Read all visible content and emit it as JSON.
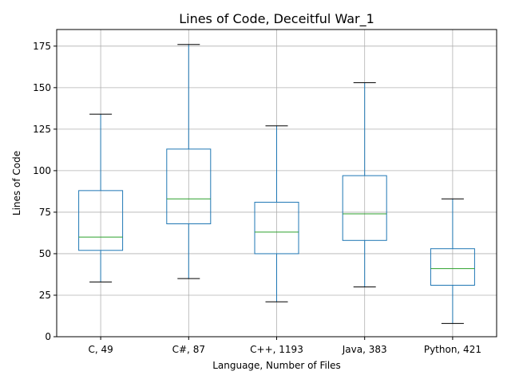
{
  "chart_data": {
    "type": "boxplot",
    "title": "Lines of Code, Deceitful War_1",
    "xlabel": "Language, Number of Files",
    "ylabel": "Lines of Code",
    "ylim": [
      0,
      185
    ],
    "yticks": [
      0,
      25,
      50,
      75,
      100,
      125,
      150,
      175
    ],
    "grid": true,
    "categories": [
      "C, 49",
      "C#, 87",
      "C++, 1193",
      "Java, 383",
      "Python, 421"
    ],
    "boxes": [
      {
        "whisker_low": 33,
        "q1": 52,
        "median": 60,
        "q3": 88,
        "whisker_high": 134
      },
      {
        "whisker_low": 35,
        "q1": 68,
        "median": 83,
        "q3": 113,
        "whisker_high": 176
      },
      {
        "whisker_low": 21,
        "q1": 50,
        "median": 63,
        "q3": 81,
        "whisker_high": 127
      },
      {
        "whisker_low": 30,
        "q1": 58,
        "median": 74,
        "q3": 97,
        "whisker_high": 153
      },
      {
        "whisker_low": 8,
        "q1": 31,
        "median": 41,
        "q3": 53,
        "whisker_high": 83
      }
    ],
    "colors": {
      "box": "#1f77b4",
      "median": "#2ca02c",
      "cap": "#000000",
      "grid": "#b0b0b0"
    }
  }
}
